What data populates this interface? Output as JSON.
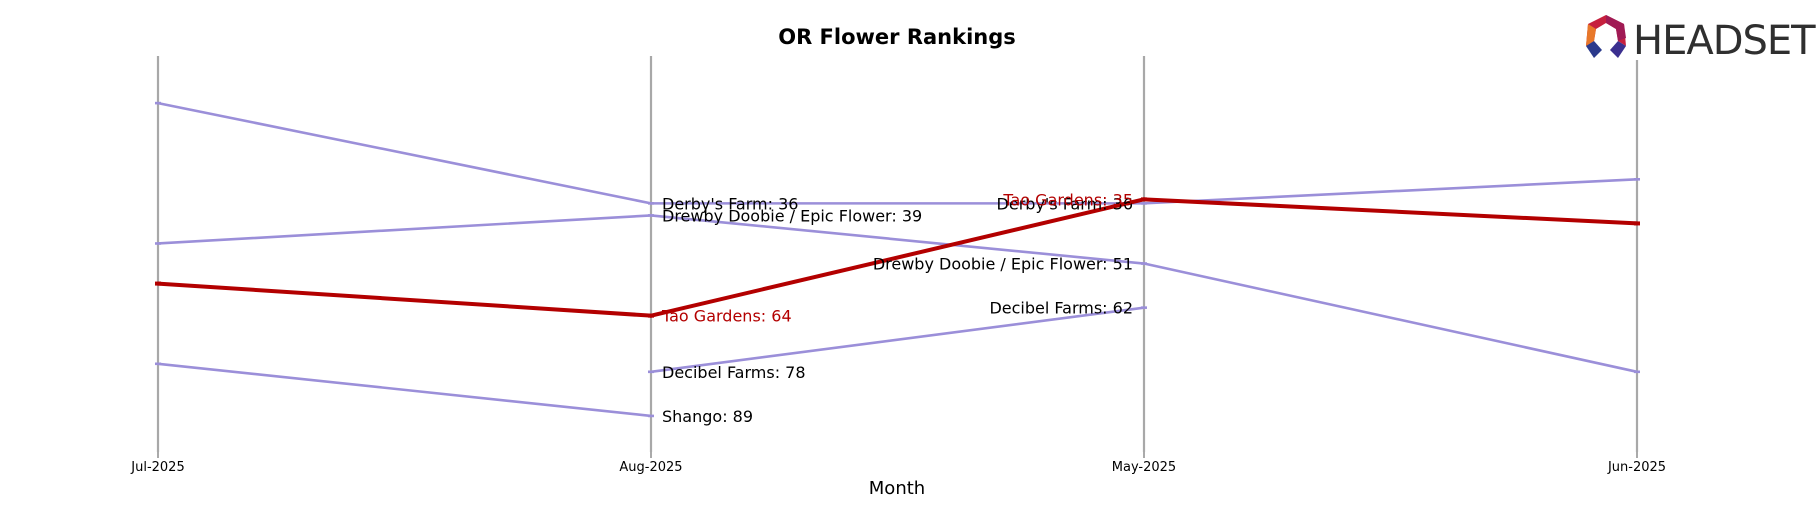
{
  "chart_data": {
    "type": "line",
    "title": "OR Flower Rankings",
    "xlabel": "Month",
    "ylabel": "",
    "categories": [
      "Jul-2025",
      "Aug-2025",
      "May-2025",
      "Jun-2025"
    ],
    "ylim": [
      96,
      0
    ],
    "series": [
      {
        "name": "Derby's Farm",
        "values": [
          11,
          36,
          36,
          30
        ],
        "highlight": false
      },
      {
        "name": "Drewby Doobie / Epic Flower",
        "values": [
          46,
          39,
          51,
          78
        ],
        "highlight": false
      },
      {
        "name": "Tao Gardens",
        "values": [
          56,
          64,
          35,
          41
        ],
        "highlight": true
      },
      {
        "name": "Decibel Farms",
        "values": [
          null,
          78,
          62,
          null
        ],
        "highlight": false
      },
      {
        "name": "Shango",
        "values": [
          76,
          89,
          null,
          null
        ],
        "highlight": false
      }
    ],
    "point_labels": [
      {
        "series": 0,
        "index": 1,
        "text": "Derby's Farm: 36",
        "side": "right"
      },
      {
        "series": 0,
        "index": 2,
        "text": "Derby's Farm: 36",
        "side": "left"
      },
      {
        "series": 1,
        "index": 1,
        "text": "Drewby Doobie / Epic Flower: 39",
        "side": "right"
      },
      {
        "series": 1,
        "index": 2,
        "text": "Drewby Doobie / Epic Flower: 51",
        "side": "left"
      },
      {
        "series": 2,
        "index": 1,
        "text": "Tao Gardens: 64",
        "side": "right"
      },
      {
        "series": 2,
        "index": 2,
        "text": "Tao Gardens: 35",
        "side": "left"
      },
      {
        "series": 3,
        "index": 1,
        "text": "Decibel Farms: 78",
        "side": "right"
      },
      {
        "series": 3,
        "index": 2,
        "text": "Decibel Farms: 62",
        "side": "left"
      },
      {
        "series": 4,
        "index": 1,
        "text": "Shango: 89",
        "side": "right"
      }
    ],
    "colors": {
      "default": "#9b8fd9",
      "highlight": "#b30000",
      "axis": "#a8a8a8"
    },
    "grid": false,
    "legend": "none"
  },
  "logo": {
    "text": "HEADSET",
    "icon": "headset-logo-icon"
  }
}
